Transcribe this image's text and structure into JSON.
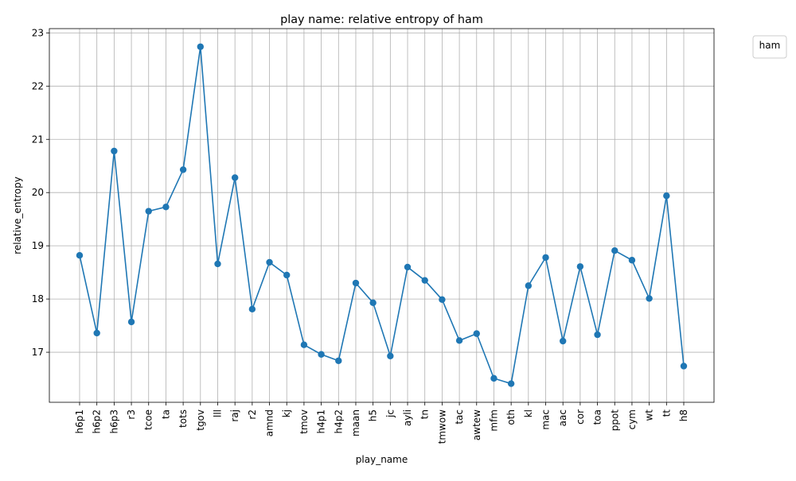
{
  "chart_data": {
    "type": "line",
    "title": "play name: relative entropy of ham",
    "xlabel": "play_name",
    "ylabel": "relative_entropy",
    "categories": [
      "h6p1",
      "h6p2",
      "h6p3",
      "r3",
      "tcoe",
      "ta",
      "tots",
      "tgov",
      "lll",
      "raj",
      "r2",
      "amnd",
      "kj",
      "tmov",
      "h4p1",
      "h4p2",
      "maan",
      "h5",
      "jc",
      "ayli",
      "tn",
      "tmwow",
      "tac",
      "awtew",
      "mfm",
      "oth",
      "kl",
      "mac",
      "aac",
      "cor",
      "toa",
      "ppot",
      "cym",
      "wt",
      "tt",
      "h8"
    ],
    "series": [
      {
        "values": [
          18.82,
          17.36,
          20.78,
          17.57,
          19.65,
          19.73,
          20.43,
          22.74,
          18.66,
          20.28,
          17.81,
          18.69,
          18.45,
          17.14,
          16.96,
          16.84,
          18.3,
          17.93,
          16.93,
          18.6,
          18.35,
          17.99,
          17.22,
          17.35,
          16.51,
          16.41,
          18.25,
          18.78,
          17.21,
          18.61,
          17.33,
          18.91,
          18.73,
          18.01,
          19.94,
          16.74
        ],
        "color": "#1f77b4",
        "marker": "circle"
      }
    ],
    "ylim": [
      16.06,
      23.08
    ],
    "yticks": [
      17,
      18,
      19,
      20,
      21,
      22,
      23
    ],
    "grid": true,
    "legend": {
      "title": "ham",
      "placement": "outside-top-right",
      "entries": []
    }
  }
}
